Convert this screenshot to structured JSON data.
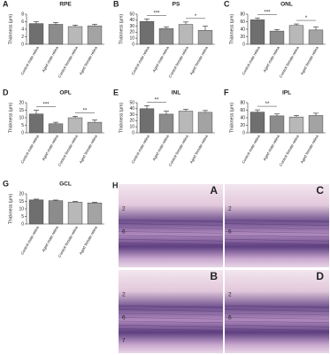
{
  "chart_data": [
    {
      "type": "bar",
      "panel": "A",
      "title": "RPE",
      "ylabel": "Thickness (µm)",
      "categories": [
        "Control male retina",
        "Aged male retina",
        "Control female retina",
        "Aged female retina"
      ],
      "values": [
        5.5,
        5.3,
        4.7,
        4.9
      ],
      "errors": [
        0.5,
        0.5,
        0.4,
        0.4
      ],
      "colors": [
        "#6f6f6f",
        "#8c8c8c",
        "#b8b8b8",
        "#a3a3a3"
      ],
      "ylim": [
        0,
        8
      ],
      "yticks": [
        0,
        2,
        4,
        6,
        8
      ],
      "annotations": []
    },
    {
      "type": "bar",
      "panel": "B",
      "title": "PS",
      "ylabel": "Thickness (µm)",
      "categories": [
        "Control male retina",
        "Aged male retina",
        "Control female retina",
        "Aged female retina"
      ],
      "values": [
        38,
        26,
        33,
        23
      ],
      "errors": [
        4,
        3,
        4,
        7
      ],
      "colors": [
        "#6f6f6f",
        "#8c8c8c",
        "#b8b8b8",
        "#a3a3a3"
      ],
      "ylim": [
        0,
        50
      ],
      "yticks": [
        0,
        10,
        20,
        30,
        40,
        50
      ],
      "annotations": [
        {
          "label": "***",
          "between": [
            "Control male retina",
            "Aged male retina"
          ]
        },
        {
          "label": "*",
          "between": [
            "Control female retina",
            "Aged female retina"
          ]
        }
      ]
    },
    {
      "type": "bar",
      "panel": "C",
      "title": "ONL",
      "ylabel": "Thickness (µm)",
      "categories": [
        "Control male retina",
        "Aged male retina",
        "Control female retina",
        "Aged female retina"
      ],
      "values": [
        65,
        35,
        50,
        38
      ],
      "errors": [
        5,
        4,
        4,
        8
      ],
      "colors": [
        "#6f6f6f",
        "#8c8c8c",
        "#b8b8b8",
        "#a3a3a3"
      ],
      "ylim": [
        0,
        80
      ],
      "yticks": [
        0,
        20,
        40,
        60,
        80
      ],
      "annotations": [
        {
          "label": "***",
          "between": [
            "Control male retina",
            "Aged male retina"
          ]
        },
        {
          "label": "*",
          "between": [
            "Control female retina",
            "Aged female retina"
          ]
        }
      ]
    },
    {
      "type": "bar",
      "panel": "D",
      "title": "OPL",
      "ylabel": "Thickness (µm)",
      "categories": [
        "Control male retina",
        "Aged male retina",
        "Control female retina",
        "Aged female retina"
      ],
      "values": [
        12.5,
        6,
        10,
        7
      ],
      "errors": [
        2.5,
        1,
        1,
        1.5
      ],
      "colors": [
        "#6f6f6f",
        "#8c8c8c",
        "#b8b8b8",
        "#a3a3a3"
      ],
      "ylim": [
        0,
        20
      ],
      "yticks": [
        0,
        5,
        10,
        15,
        20
      ],
      "annotations": [
        {
          "label": "***",
          "between": [
            "Control male retina",
            "Aged male retina"
          ]
        },
        {
          "label": "**",
          "between": [
            "Control female retina",
            "Aged female retina"
          ]
        }
      ]
    },
    {
      "type": "bar",
      "panel": "E",
      "title": "INL",
      "ylabel": "Thickness (µm)",
      "categories": [
        "Control male retina",
        "Aged male retina",
        "Control female retina",
        "Aged female retina"
      ],
      "values": [
        40,
        31,
        36,
        34
      ],
      "errors": [
        5,
        5,
        3,
        3
      ],
      "colors": [
        "#6f6f6f",
        "#8c8c8c",
        "#b8b8b8",
        "#a3a3a3"
      ],
      "ylim": [
        0,
        50
      ],
      "yticks": [
        0,
        10,
        20,
        30,
        40,
        50
      ],
      "annotations": [
        {
          "label": "**",
          "between": [
            "Control male retina",
            "Aged male retina"
          ]
        }
      ]
    },
    {
      "type": "bar",
      "panel": "F",
      "title": "IPL",
      "ylabel": "Thickness (µm)",
      "categories": [
        "Control male retina",
        "Aged male retina",
        "Control female retina",
        "Aged female retina"
      ],
      "values": [
        55,
        45,
        42,
        46
      ],
      "errors": [
        6,
        5,
        4,
        6
      ],
      "colors": [
        "#6f6f6f",
        "#8c8c8c",
        "#b8b8b8",
        "#a3a3a3"
      ],
      "ylim": [
        0,
        80
      ],
      "yticks": [
        0,
        20,
        40,
        60,
        80
      ],
      "annotations": [
        {
          "label": "**",
          "between": [
            "Control male retina",
            "Aged male retina"
          ]
        }
      ]
    },
    {
      "type": "bar",
      "panel": "G",
      "title": "GCL",
      "ylabel": "Thickness (µm)",
      "categories": [
        "Control male retina",
        "Aged male retina",
        "Control female retina",
        "Aged female retina"
      ],
      "values": [
        16,
        15.5,
        14.5,
        14
      ],
      "errors": [
        0.5,
        0.4,
        0.5,
        0.5
      ],
      "colors": [
        "#6f6f6f",
        "#8c8c8c",
        "#b8b8b8",
        "#a3a3a3"
      ],
      "ylim": [
        0,
        20
      ],
      "yticks": [
        0,
        5,
        10,
        15,
        20
      ],
      "annotations": []
    }
  ],
  "histology": {
    "panel": "H",
    "subpanels": [
      {
        "letter": "A",
        "layers": [
          "2",
          "6"
        ]
      },
      {
        "letter": "C",
        "layers": [
          "2",
          "6"
        ]
      },
      {
        "letter": "B",
        "layers": [
          "2",
          "6",
          "7"
        ]
      },
      {
        "letter": "D",
        "layers": [
          "2",
          "6"
        ]
      }
    ]
  }
}
